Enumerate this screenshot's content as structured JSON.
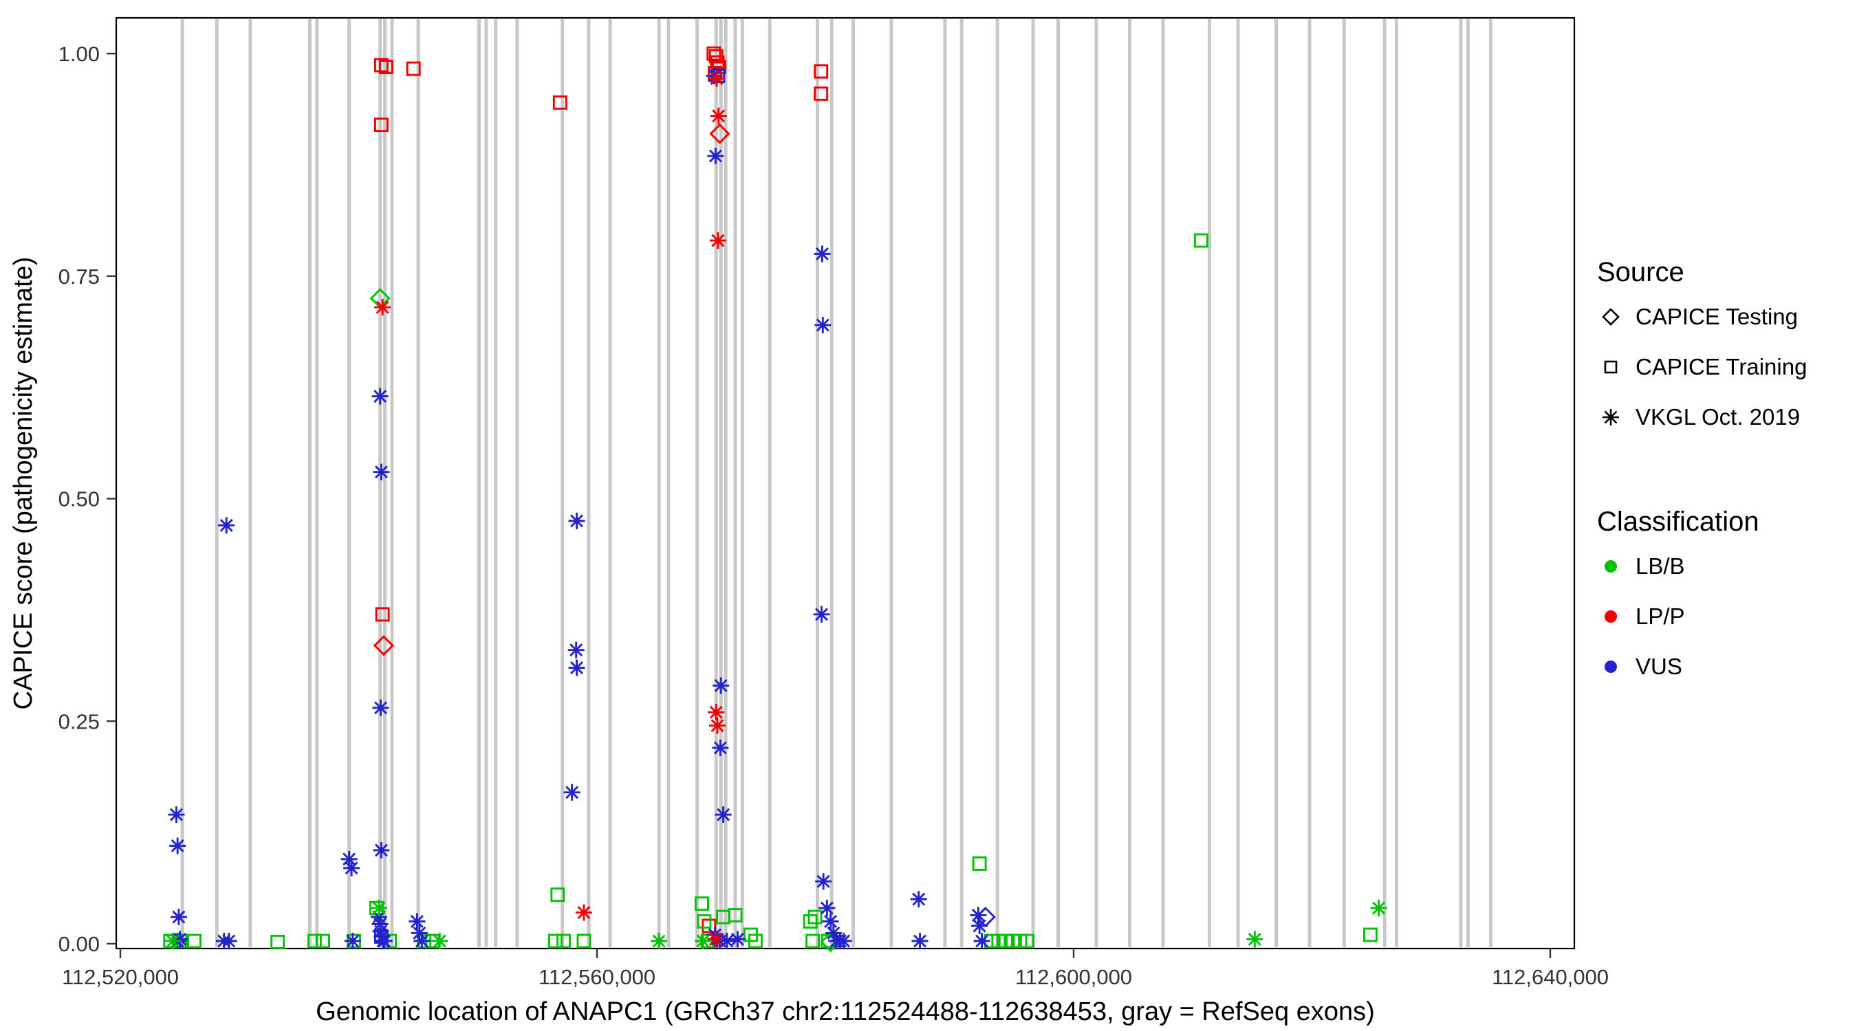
{
  "chart_data": {
    "type": "scatter",
    "title": "",
    "xlabel": "Genomic location of ANAPC1 (GRCh37 chr2:112524488-112638453, gray = RefSeq exons)",
    "ylabel": "CAPICE score (pathogenicity estimate)",
    "xlim": [
      112519650,
      112642050
    ],
    "ylim": [
      -0.005,
      1.04
    ],
    "grid": "off",
    "legend_position": "right",
    "x_ticks": [
      {
        "value": 112520000,
        "label": "112,520,000"
      },
      {
        "value": 112560000,
        "label": "112,560,000"
      },
      {
        "value": 112600000,
        "label": "112,600,000"
      },
      {
        "value": 112640000,
        "label": "112,640,000"
      }
    ],
    "y_ticks": [
      {
        "value": 0.0,
        "label": "0.00"
      },
      {
        "value": 0.25,
        "label": "0.25"
      },
      {
        "value": 0.5,
        "label": "0.50"
      },
      {
        "value": 0.75,
        "label": "0.75"
      },
      {
        "value": 1.0,
        "label": "1.00"
      }
    ],
    "exon_color": "#C8C8C8",
    "exons": [
      112525200,
      112528100,
      112530900,
      112535900,
      112536500,
      112539200,
      112541800,
      112542200,
      112542800,
      112545000,
      112550100,
      112550700,
      112551500,
      112553300,
      112557100,
      112559300,
      112561100,
      112565200,
      112566000,
      112568400,
      112570000,
      112570400,
      112570800,
      112571600,
      112572200,
      112574500,
      112578500,
      112579700,
      112581500,
      112584700,
      112589200,
      112590600,
      112593600,
      112596600,
      112598700,
      112601900,
      112604700,
      112607500,
      112611400,
      112613800,
      112617000,
      112619800,
      112622700,
      112626100,
      112627100,
      112632500,
      112633100,
      112635000
    ],
    "colors": {
      "LB/B": "#00C200",
      "LP/P": "#EE0000",
      "VUS": "#2323CC"
    },
    "marker_by_source": {
      "CAPICE Testing": "diamond",
      "CAPICE Training": "square",
      "VKGL Oct. 2019": "asterisk"
    },
    "series": [
      {
        "source": "CAPICE Testing",
        "classification": "LB/B",
        "points": [
          [
            112541800,
            0.725
          ],
          [
            112579600,
            0.002
          ]
        ]
      },
      {
        "source": "CAPICE Testing",
        "classification": "LP/P",
        "points": [
          [
            112542100,
            0.335
          ],
          [
            112570300,
            0.91
          ]
        ]
      },
      {
        "source": "CAPICE Testing",
        "classification": "VUS",
        "points": [
          [
            112592600,
            0.03
          ]
        ]
      },
      {
        "source": "CAPICE Training",
        "classification": "LP/P",
        "points": [
          [
            112541900,
            0.987
          ],
          [
            112542300,
            0.985
          ],
          [
            112541900,
            0.92
          ],
          [
            112544600,
            0.983
          ],
          [
            112556900,
            0.945
          ],
          [
            112569800,
            1.0
          ],
          [
            112570000,
            0.997
          ],
          [
            112570100,
            0.99
          ],
          [
            112570250,
            0.985
          ],
          [
            112569900,
            0.978
          ],
          [
            112542000,
            0.37
          ],
          [
            112578800,
            0.98
          ],
          [
            112578800,
            0.955
          ],
          [
            112569400,
            0.02
          ]
        ]
      },
      {
        "source": "CAPICE Training",
        "classification": "LB/B",
        "points": [
          [
            112524200,
            0.003
          ],
          [
            112525000,
            0.003
          ],
          [
            112526200,
            0.003
          ],
          [
            112533200,
            0.002
          ],
          [
            112536300,
            0.003
          ],
          [
            112537000,
            0.003
          ],
          [
            112539600,
            0.003
          ],
          [
            112541500,
            0.04
          ],
          [
            112542600,
            0.003
          ],
          [
            112545500,
            0.003
          ],
          [
            112546200,
            0.003
          ],
          [
            112556700,
            0.055
          ],
          [
            112556500,
            0.003
          ],
          [
            112557200,
            0.003
          ],
          [
            112558900,
            0.003
          ],
          [
            112568800,
            0.045
          ],
          [
            112569000,
            0.025
          ],
          [
            112569300,
            0.003
          ],
          [
            112570600,
            0.03
          ],
          [
            112571600,
            0.032
          ],
          [
            112572900,
            0.01
          ],
          [
            112573300,
            0.003
          ],
          [
            112577900,
            0.025
          ],
          [
            112578300,
            0.03
          ],
          [
            112578100,
            0.003
          ],
          [
            112579400,
            0.003
          ],
          [
            112592100,
            0.09
          ],
          [
            112593100,
            0.003
          ],
          [
            112593700,
            0.003
          ],
          [
            112594300,
            0.003
          ],
          [
            112594900,
            0.003
          ],
          [
            112595500,
            0.003
          ],
          [
            112596100,
            0.003
          ],
          [
            112610700,
            0.79
          ],
          [
            112624900,
            0.01
          ]
        ]
      },
      {
        "source": "CAPICE Training",
        "classification": "VUS",
        "points": [
          [
            112570150,
            0.975
          ],
          [
            112541900,
            0.008
          ]
        ]
      },
      {
        "source": "VKGL Oct. 2019",
        "classification": "VUS",
        "points": [
          [
            112524700,
            0.145
          ],
          [
            112524800,
            0.11
          ],
          [
            112524900,
            0.03
          ],
          [
            112525000,
            0.005
          ],
          [
            112524800,
            0.003
          ],
          [
            112528900,
            0.47
          ],
          [
            112528700,
            0.003
          ],
          [
            112529100,
            0.003
          ],
          [
            112539200,
            0.095
          ],
          [
            112539400,
            0.085
          ],
          [
            112539500,
            0.003
          ],
          [
            112541800,
            0.615
          ],
          [
            112541900,
            0.53
          ],
          [
            112541850,
            0.265
          ],
          [
            112541900,
            0.105
          ],
          [
            112541700,
            0.03
          ],
          [
            112541800,
            0.022
          ],
          [
            112541850,
            0.014
          ],
          [
            112541950,
            0.008
          ],
          [
            112542050,
            0.003
          ],
          [
            112542150,
            0.003
          ],
          [
            112544900,
            0.025
          ],
          [
            112545100,
            0.012
          ],
          [
            112545300,
            0.003
          ],
          [
            112557900,
            0.17
          ],
          [
            112558300,
            0.475
          ],
          [
            112558250,
            0.33
          ],
          [
            112558300,
            0.31
          ],
          [
            112569850,
            0.975
          ],
          [
            112569950,
            0.885
          ],
          [
            112570400,
            0.29
          ],
          [
            112570350,
            0.22
          ],
          [
            112570600,
            0.145
          ],
          [
            112569900,
            0.01
          ],
          [
            112570100,
            0.005
          ],
          [
            112570300,
            0.003
          ],
          [
            112570900,
            0.003
          ],
          [
            112571800,
            0.005
          ],
          [
            112578900,
            0.775
          ],
          [
            112578950,
            0.695
          ],
          [
            112578850,
            0.37
          ],
          [
            112579000,
            0.07
          ],
          [
            112579300,
            0.04
          ],
          [
            112579600,
            0.025
          ],
          [
            112579850,
            0.012
          ],
          [
            112580100,
            0.003
          ],
          [
            112580400,
            0.003
          ],
          [
            112580700,
            0.003
          ],
          [
            112587000,
            0.05
          ],
          [
            112587100,
            0.003
          ],
          [
            112592000,
            0.032
          ],
          [
            112592100,
            0.02
          ],
          [
            112592300,
            0.003
          ]
        ]
      },
      {
        "source": "VKGL Oct. 2019",
        "classification": "LP/P",
        "points": [
          [
            112542000,
            0.715
          ],
          [
            112570200,
            0.93
          ],
          [
            112570150,
            0.79
          ],
          [
            112570000,
            0.26
          ],
          [
            112570100,
            0.245
          ],
          [
            112558900,
            0.035
          ],
          [
            112569950,
            0.005
          ],
          [
            112570050,
            0.972
          ]
        ]
      },
      {
        "source": "VKGL Oct. 2019",
        "classification": "LB/B",
        "points": [
          [
            112524400,
            0.003
          ],
          [
            112541700,
            0.04
          ],
          [
            112546800,
            0.003
          ],
          [
            112565200,
            0.003
          ],
          [
            112568900,
            0.003
          ],
          [
            112615200,
            0.005
          ],
          [
            112625600,
            0.04
          ]
        ]
      }
    ]
  },
  "legend": {
    "source": {
      "title": "Source",
      "items": [
        {
          "label": "CAPICE Testing",
          "marker": "diamond"
        },
        {
          "label": "CAPICE Training",
          "marker": "square"
        },
        {
          "label": "VKGL Oct. 2019",
          "marker": "asterisk"
        }
      ]
    },
    "classification": {
      "title": "Classification",
      "items": [
        {
          "label": "LB/B",
          "color": "#00C200"
        },
        {
          "label": "LP/P",
          "color": "#EE0000"
        },
        {
          "label": "VUS",
          "color": "#2323CC"
        }
      ]
    }
  }
}
